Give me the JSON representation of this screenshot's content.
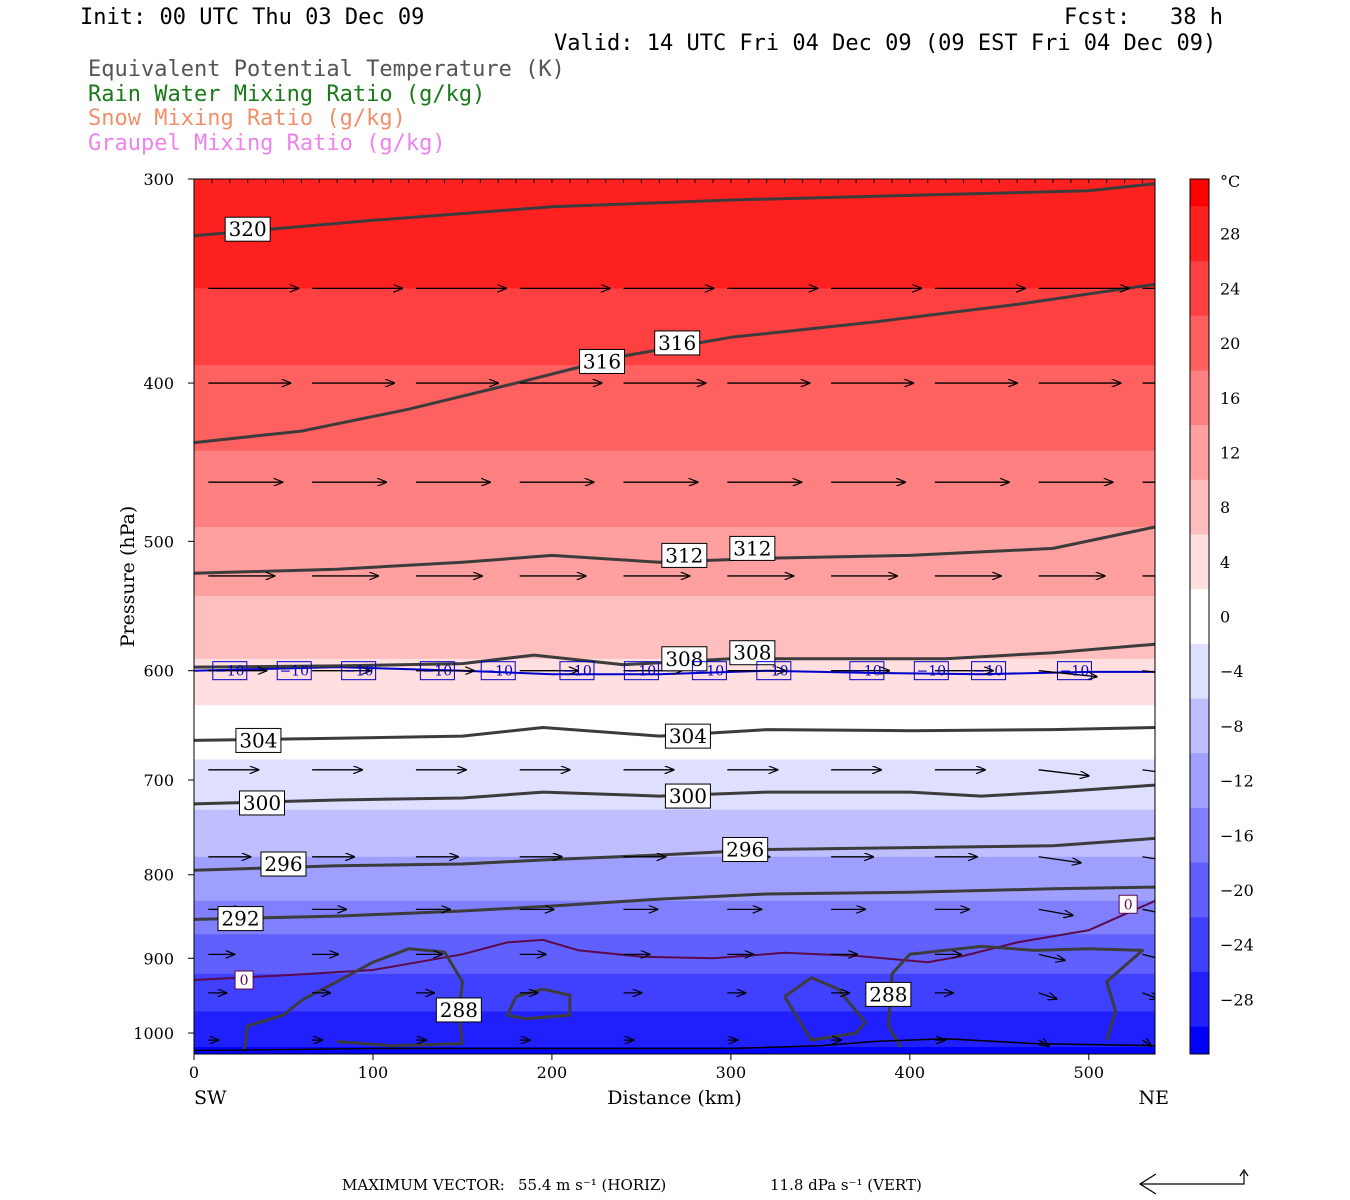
{
  "header": {
    "init": "Init: 00 UTC Thu 03 Dec 09",
    "fcst": "Fcst:   38 h",
    "valid": "Valid: 14 UTC Fri 04 Dec 09 (09 EST Fri 04 Dec 09)",
    "fields": [
      {
        "label": "Equivalent Potential Temperature (K)",
        "color": "#555555"
      },
      {
        "label": "Rain Water Mixing Ratio (g/kg)",
        "color": "#1a7a1a"
      },
      {
        "label": "Snow Mixing Ratio (g/kg)",
        "color": "#f0906a"
      },
      {
        "label": "Graupel Mixing Ratio (g/kg)",
        "color": "#ee82ee"
      }
    ]
  },
  "chart_data": {
    "type": "heatmap",
    "xlabel": "Distance (km)",
    "ylabel": "Pressure (hPa)",
    "xlim": [
      0,
      537
    ],
    "ylim": [
      1030,
      300
    ],
    "y_scale": "log",
    "x_ticks": [
      0,
      100,
      200,
      300,
      400,
      500
    ],
    "y_ticks": [
      300,
      400,
      500,
      600,
      700,
      800,
      900,
      1000
    ],
    "x_end_labels": {
      "left": "SW",
      "right": "NE"
    },
    "colorbar": {
      "unit": "°C",
      "ticks": [
        28,
        24,
        20,
        16,
        12,
        8,
        4,
        0,
        -4,
        -8,
        -12,
        -16,
        -20,
        -24,
        -28
      ],
      "range": [
        -32,
        32
      ],
      "colors": {
        "cold": "#0000ff",
        "neutral": "#ffffff",
        "warm": "#ff0000"
      }
    },
    "temperature_isolines": [
      {
        "value": 0,
        "label": "0",
        "color": "#5a0a4a"
      },
      {
        "value": -10,
        "label": "−10",
        "color": "#0000cc"
      }
    ],
    "theta_e_contours": [
      {
        "value": 320,
        "label": "320"
      },
      {
        "value": 316,
        "label": "316"
      },
      {
        "value": 312,
        "label": "312"
      },
      {
        "value": 308,
        "label": "308"
      },
      {
        "value": 304,
        "label": "304"
      },
      {
        "value": 300,
        "label": "300"
      },
      {
        "value": 296,
        "label": "296"
      },
      {
        "value": 292,
        "label": "292"
      },
      {
        "value": 288,
        "label": "288"
      }
    ],
    "wind_vector_rows_hpa": [
      350,
      400,
      460,
      525,
      600,
      690,
      780,
      840,
      895,
      945,
      1010
    ]
  },
  "footer": {
    "max_vector_label": "MAXIMUM VECTOR:",
    "horiz": "55.4 m s⁻¹ (HORIZ)",
    "vert": "11.8 dPa s⁻¹ (VERT)"
  }
}
